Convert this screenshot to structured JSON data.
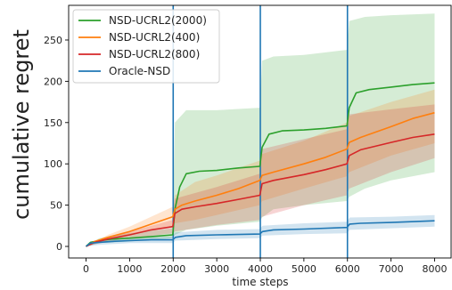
{
  "chart_data": {
    "type": "line",
    "xlabel": "time steps",
    "ylabel": "cumulative regret",
    "xlim": [
      -400,
      8400
    ],
    "ylim": [
      -14,
      292
    ],
    "x_ticks": [
      0,
      1000,
      2000,
      3000,
      4000,
      5000,
      6000,
      7000,
      8000
    ],
    "y_ticks": [
      0,
      50,
      100,
      150,
      200,
      250
    ],
    "vertical_lines": [
      2000,
      4000,
      6000
    ],
    "legend_position": "top-left",
    "grid": false,
    "series": [
      {
        "name": "NSD-UCRL2(2000)",
        "color": "#2ca02c",
        "points": [
          [
            0,
            0
          ],
          [
            100,
            5
          ],
          [
            300,
            7
          ],
          [
            600,
            9
          ],
          [
            1000,
            10
          ],
          [
            1500,
            12
          ],
          [
            1990,
            14
          ],
          [
            2040,
            45
          ],
          [
            2150,
            72
          ],
          [
            2300,
            88
          ],
          [
            2600,
            91
          ],
          [
            3000,
            92
          ],
          [
            3500,
            95
          ],
          [
            3990,
            97
          ],
          [
            4040,
            120
          ],
          [
            4200,
            136
          ],
          [
            4500,
            140
          ],
          [
            5000,
            141
          ],
          [
            5500,
            143
          ],
          [
            5990,
            146
          ],
          [
            6040,
            168
          ],
          [
            6200,
            186
          ],
          [
            6500,
            190
          ],
          [
            7000,
            193
          ],
          [
            7500,
            196
          ],
          [
            8000,
            198
          ]
        ],
        "band": [
          [
            0,
            0,
            0
          ],
          [
            300,
            4,
            10
          ],
          [
            1000,
            6,
            16
          ],
          [
            1990,
            10,
            22
          ],
          [
            2040,
            14,
            150
          ],
          [
            2300,
            20,
            165
          ],
          [
            3000,
            25,
            165
          ],
          [
            3990,
            30,
            168
          ],
          [
            4040,
            35,
            225
          ],
          [
            4300,
            45,
            230
          ],
          [
            5000,
            50,
            232
          ],
          [
            5990,
            55,
            238
          ],
          [
            6040,
            60,
            273
          ],
          [
            6400,
            70,
            278
          ],
          [
            7000,
            80,
            280
          ],
          [
            8000,
            90,
            282
          ]
        ]
      },
      {
        "name": "NSD-UCRL2(400)",
        "color": "#ff7f0e",
        "points": [
          [
            0,
            0
          ],
          [
            200,
            6
          ],
          [
            500,
            11
          ],
          [
            1000,
            18
          ],
          [
            1500,
            27
          ],
          [
            1990,
            36
          ],
          [
            2040,
            45
          ],
          [
            2200,
            50
          ],
          [
            2500,
            55
          ],
          [
            3000,
            62
          ],
          [
            3500,
            70
          ],
          [
            3990,
            80
          ],
          [
            4040,
            86
          ],
          [
            4300,
            90
          ],
          [
            5000,
            100
          ],
          [
            5500,
            108
          ],
          [
            5990,
            118
          ],
          [
            6040,
            126
          ],
          [
            6300,
            132
          ],
          [
            7000,
            145
          ],
          [
            7500,
            155
          ],
          [
            8000,
            162
          ]
        ],
        "band": [
          [
            0,
            0,
            0
          ],
          [
            500,
            8,
            14
          ],
          [
            1000,
            13,
            24
          ],
          [
            1990,
            25,
            48
          ],
          [
            2040,
            28,
            62
          ],
          [
            2500,
            32,
            78
          ],
          [
            3000,
            38,
            86
          ],
          [
            3990,
            50,
            104
          ],
          [
            4040,
            55,
            112
          ],
          [
            5000,
            70,
            128
          ],
          [
            5990,
            85,
            150
          ],
          [
            6040,
            90,
            158
          ],
          [
            7000,
            110,
            175
          ],
          [
            8000,
            125,
            190
          ]
        ]
      },
      {
        "name": "NSD-UCRL2(800)",
        "color": "#d62728",
        "points": [
          [
            0,
            0
          ],
          [
            200,
            5
          ],
          [
            500,
            9
          ],
          [
            1000,
            14
          ],
          [
            1500,
            20
          ],
          [
            1990,
            24
          ],
          [
            2040,
            40
          ],
          [
            2200,
            45
          ],
          [
            2500,
            48
          ],
          [
            3000,
            52
          ],
          [
            3500,
            57
          ],
          [
            3990,
            62
          ],
          [
            4040,
            76
          ],
          [
            4300,
            80
          ],
          [
            5000,
            87
          ],
          [
            5500,
            93
          ],
          [
            5990,
            100
          ],
          [
            6040,
            110
          ],
          [
            6300,
            117
          ],
          [
            7000,
            126
          ],
          [
            7500,
            132
          ],
          [
            8000,
            136
          ]
        ],
        "band": [
          [
            0,
            0,
            0
          ],
          [
            500,
            6,
            12
          ],
          [
            1000,
            10,
            18
          ],
          [
            1990,
            16,
            32
          ],
          [
            2040,
            18,
            58
          ],
          [
            3000,
            26,
            72
          ],
          [
            3990,
            32,
            88
          ],
          [
            4040,
            36,
            118
          ],
          [
            5000,
            50,
            130
          ],
          [
            5990,
            62,
            142
          ],
          [
            6040,
            70,
            160
          ],
          [
            7000,
            90,
            166
          ],
          [
            8000,
            107,
            172
          ]
        ]
      },
      {
        "name": "Oracle-NSD",
        "color": "#1f77b4",
        "points": [
          [
            0,
            0
          ],
          [
            100,
            4
          ],
          [
            300,
            5
          ],
          [
            600,
            6
          ],
          [
            1000,
            7
          ],
          [
            1500,
            8
          ],
          [
            1990,
            8
          ],
          [
            2050,
            11
          ],
          [
            2300,
            13
          ],
          [
            3000,
            14
          ],
          [
            3990,
            15
          ],
          [
            4050,
            18
          ],
          [
            4300,
            20
          ],
          [
            5000,
            21
          ],
          [
            5990,
            23
          ],
          [
            6050,
            27
          ],
          [
            6300,
            28
          ],
          [
            7000,
            29
          ],
          [
            8000,
            31
          ]
        ],
        "band": [
          [
            0,
            0,
            0
          ],
          [
            300,
            2,
            8
          ],
          [
            1000,
            4,
            10
          ],
          [
            1990,
            4,
            12
          ],
          [
            2050,
            7,
            17
          ],
          [
            3000,
            9,
            20
          ],
          [
            3990,
            10,
            21
          ],
          [
            4050,
            13,
            25
          ],
          [
            5000,
            15,
            28
          ],
          [
            5990,
            16,
            30
          ],
          [
            6050,
            20,
            35
          ],
          [
            7000,
            22,
            36
          ],
          [
            8000,
            24,
            38
          ]
        ]
      }
    ]
  }
}
